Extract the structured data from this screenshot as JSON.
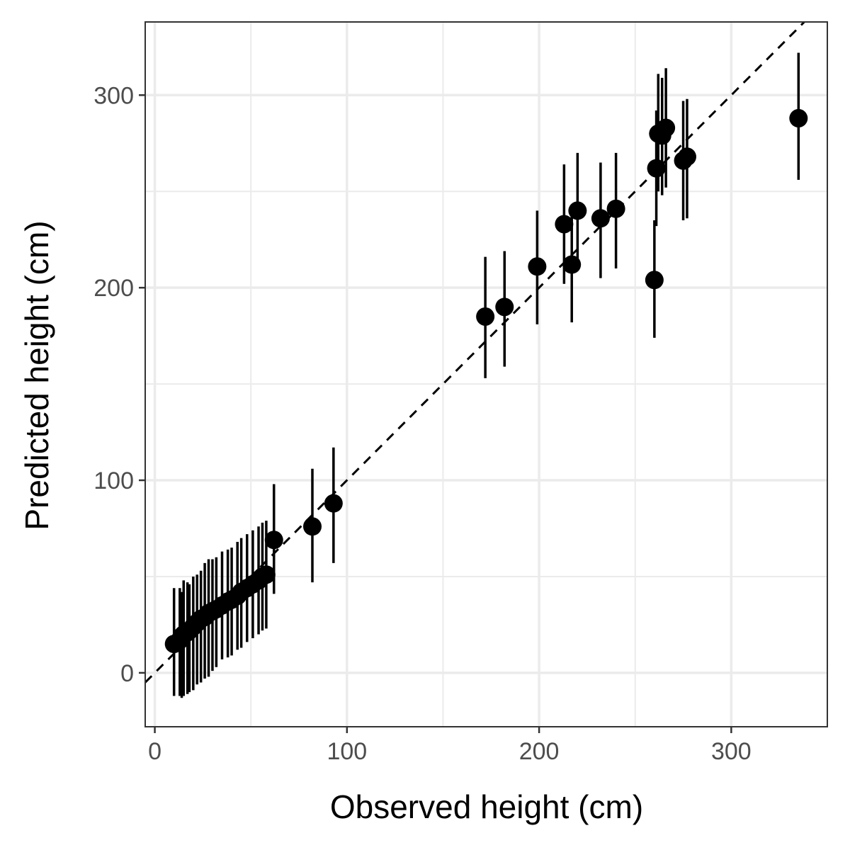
{
  "chart_data": {
    "type": "scatter",
    "title": "",
    "xlabel": "Observed height (cm)",
    "ylabel": "Predicted height (cm)",
    "xlim": [
      -5,
      350
    ],
    "ylim": [
      -28,
      338
    ],
    "x_ticks": [
      0,
      100,
      200,
      300
    ],
    "y_ticks": [
      0,
      100,
      200,
      300
    ],
    "x_minor_grid": [
      50,
      150,
      250
    ],
    "y_minor_grid": [
      50,
      150,
      250
    ],
    "grid": true,
    "legend": "none",
    "reference_line": {
      "type": "identity",
      "style": "dashed",
      "color": "#000000"
    },
    "colors": {
      "points": "#000000",
      "error_bars": "#000000",
      "grid": "#ebebeb",
      "panel_border": "#333333"
    },
    "points": [
      {
        "x": 10,
        "y": 15,
        "lo": -12,
        "hi": 44
      },
      {
        "x": 13,
        "y": 17,
        "lo": -12,
        "hi": 44
      },
      {
        "x": 14,
        "y": 19,
        "lo": -13,
        "hi": 42
      },
      {
        "x": 15,
        "y": 20,
        "lo": -12,
        "hi": 48
      },
      {
        "x": 17,
        "y": 21,
        "lo": -11,
        "hi": 47
      },
      {
        "x": 18,
        "y": 22,
        "lo": -10,
        "hi": 46
      },
      {
        "x": 20,
        "y": 24,
        "lo": -9,
        "hi": 50
      },
      {
        "x": 22,
        "y": 26,
        "lo": -6,
        "hi": 51
      },
      {
        "x": 24,
        "y": 28,
        "lo": -5,
        "hi": 53
      },
      {
        "x": 26,
        "y": 29,
        "lo": -3,
        "hi": 57
      },
      {
        "x": 28,
        "y": 31,
        "lo": -2,
        "hi": 59
      },
      {
        "x": 30,
        "y": 32,
        "lo": 1,
        "hi": 59
      },
      {
        "x": 32,
        "y": 33,
        "lo": 3,
        "hi": 60
      },
      {
        "x": 35,
        "y": 35,
        "lo": 7,
        "hi": 63
      },
      {
        "x": 38,
        "y": 37,
        "lo": 8,
        "hi": 64
      },
      {
        "x": 40,
        "y": 38,
        "lo": 9,
        "hi": 65
      },
      {
        "x": 43,
        "y": 40,
        "lo": 12,
        "hi": 68
      },
      {
        "x": 45,
        "y": 42,
        "lo": 13,
        "hi": 70
      },
      {
        "x": 48,
        "y": 44,
        "lo": 16,
        "hi": 72
      },
      {
        "x": 51,
        "y": 46,
        "lo": 18,
        "hi": 74
      },
      {
        "x": 54,
        "y": 48,
        "lo": 20,
        "hi": 76
      },
      {
        "x": 56,
        "y": 50,
        "lo": 22,
        "hi": 78
      },
      {
        "x": 58,
        "y": 51,
        "lo": 23,
        "hi": 79
      },
      {
        "x": 62,
        "y": 69,
        "lo": 41,
        "hi": 98
      },
      {
        "x": 82,
        "y": 76,
        "lo": 47,
        "hi": 106
      },
      {
        "x": 93,
        "y": 88,
        "lo": 57,
        "hi": 117
      },
      {
        "x": 172,
        "y": 185,
        "lo": 153,
        "hi": 216
      },
      {
        "x": 182,
        "y": 190,
        "lo": 159,
        "hi": 219
      },
      {
        "x": 199,
        "y": 211,
        "lo": 181,
        "hi": 240
      },
      {
        "x": 213,
        "y": 233,
        "lo": 202,
        "hi": 264
      },
      {
        "x": 217,
        "y": 212,
        "lo": 182,
        "hi": 242
      },
      {
        "x": 220,
        "y": 240,
        "lo": 209,
        "hi": 270
      },
      {
        "x": 232,
        "y": 236,
        "lo": 205,
        "hi": 265
      },
      {
        "x": 240,
        "y": 241,
        "lo": 210,
        "hi": 270
      },
      {
        "x": 260,
        "y": 204,
        "lo": 174,
        "hi": 235
      },
      {
        "x": 261,
        "y": 262,
        "lo": 232,
        "hi": 292
      },
      {
        "x": 262,
        "y": 280,
        "lo": 250,
        "hi": 311
      },
      {
        "x": 264,
        "y": 279,
        "lo": 248,
        "hi": 309
      },
      {
        "x": 266,
        "y": 283,
        "lo": 252,
        "hi": 314
      },
      {
        "x": 275,
        "y": 266,
        "lo": 235,
        "hi": 297
      },
      {
        "x": 277,
        "y": 268,
        "lo": 236,
        "hi": 298
      },
      {
        "x": 335,
        "y": 288,
        "lo": 256,
        "hi": 322
      }
    ]
  }
}
